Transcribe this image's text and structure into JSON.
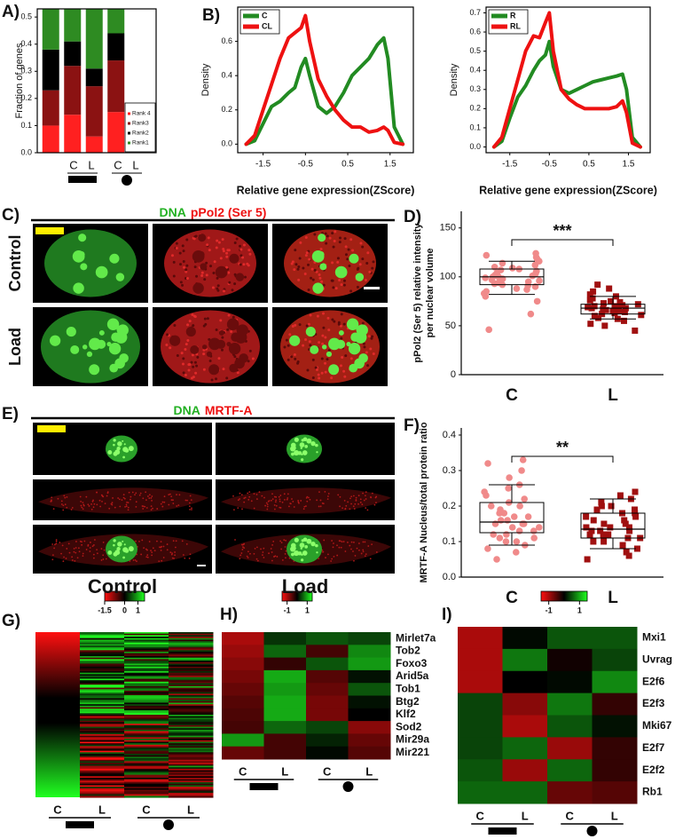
{
  "chart_data": [
    {
      "type": "bar",
      "stacked": true,
      "panel": "A)",
      "ylabel": "Fraction of genes",
      "categories": [
        "C",
        "L",
        "C",
        "L"
      ],
      "series": [
        {
          "name": "Rank 4",
          "color": "#ff2020",
          "values": [
            0.1,
            0.14,
            0.06,
            0.15
          ]
        },
        {
          "name": "Rank3",
          "color": "#8b1212",
          "values": [
            0.13,
            0.18,
            0.185,
            0.19
          ]
        },
        {
          "name": "Rank2",
          "color": "#000000",
          "values": [
            0.15,
            0.09,
            0.065,
            0.1
          ]
        },
        {
          "name": "Rank1",
          "color": "#2e8b22",
          "values": [
            0.15,
            0.12,
            0.22,
            0.09
          ]
        }
      ],
      "ylim": [
        0,
        0.53
      ],
      "yticks": [
        {
          "value": 0,
          "label": "0.0"
        },
        0.1,
        0.2,
        0.3,
        0.4,
        0.5
      ],
      "legend": "lower right"
    },
    {
      "type": "line",
      "panel": "B)",
      "ylabel": "Density",
      "xlabel": "Relative gene expression(ZScore)",
      "x": [
        -1.9,
        -1.7,
        -1.5,
        -1.3,
        -1.1,
        -0.9,
        -0.75,
        -0.6,
        -0.5,
        -0.4,
        -0.2,
        0,
        0.2,
        0.4,
        0.6,
        0.8,
        1.0,
        1.2,
        1.35,
        1.45,
        1.6,
        1.8
      ],
      "series": [
        {
          "name": "C",
          "color": "#228b22",
          "values": [
            0.0,
            0.02,
            0.12,
            0.22,
            0.25,
            0.3,
            0.33,
            0.45,
            0.5,
            0.4,
            0.22,
            0.18,
            0.22,
            0.3,
            0.4,
            0.45,
            0.5,
            0.58,
            0.62,
            0.5,
            0.1,
            0.0
          ]
        },
        {
          "name": "CL",
          "color": "#ee1111",
          "values": [
            0.0,
            0.05,
            0.2,
            0.35,
            0.5,
            0.62,
            0.65,
            0.68,
            0.75,
            0.6,
            0.38,
            0.28,
            0.2,
            0.14,
            0.1,
            0.1,
            0.07,
            0.08,
            0.1,
            0.08,
            0.01,
            0.0
          ]
        }
      ],
      "xlim": [
        -2.1,
        2.05
      ],
      "xticks": [
        -1.5,
        -0.5,
        0.5,
        1.5
      ],
      "ylim": [
        -0.05,
        0.8
      ],
      "yticks": [
        {
          "value": 0,
          "label": "0.0"
        },
        0.2,
        0.4,
        0.6
      ],
      "legend": "upper left"
    },
    {
      "type": "line",
      "ylabel": "Density",
      "xlabel": "Relative gene expression(ZScore)",
      "x": [
        -1.9,
        -1.7,
        -1.5,
        -1.3,
        -1.1,
        -0.9,
        -0.75,
        -0.6,
        -0.5,
        -0.4,
        -0.2,
        0,
        0.2,
        0.4,
        0.6,
        0.8,
        1.0,
        1.2,
        1.35,
        1.45,
        1.6,
        1.8
      ],
      "series": [
        {
          "name": "R",
          "color": "#228b22",
          "values": [
            0.0,
            0.03,
            0.15,
            0.26,
            0.32,
            0.4,
            0.45,
            0.48,
            0.55,
            0.42,
            0.3,
            0.28,
            0.3,
            0.32,
            0.34,
            0.35,
            0.36,
            0.37,
            0.38,
            0.3,
            0.05,
            0.0
          ]
        },
        {
          "name": "RL",
          "color": "#ee1111",
          "values": [
            0.0,
            0.05,
            0.2,
            0.35,
            0.5,
            0.58,
            0.57,
            0.65,
            0.7,
            0.5,
            0.3,
            0.25,
            0.22,
            0.2,
            0.2,
            0.2,
            0.2,
            0.21,
            0.24,
            0.18,
            0.02,
            0.0
          ]
        }
      ],
      "xlim": [
        -2.1,
        2.05
      ],
      "xticks": [
        -1.5,
        -0.5,
        0.5,
        1.5
      ],
      "ylim": [
        -0.03,
        0.73
      ],
      "yticks": [
        {
          "value": 0,
          "label": "0.0"
        },
        0.1,
        0.2,
        0.3,
        0.4,
        0.5,
        0.6,
        0.7
      ],
      "legend": "upper left"
    },
    {
      "type": "box",
      "panel": "D)",
      "ylabel": [
        "pPol2 (Ser 5) relative intensity",
        "per nuclear volume"
      ],
      "categories": [
        "C",
        "L"
      ],
      "colors": [
        "#f08a8a",
        "#a01010"
      ],
      "markers": [
        "circle",
        "square"
      ],
      "points": [
        [
          46,
          62,
          75,
          80,
          83,
          85,
          87,
          88,
          90,
          91,
          92,
          93,
          94,
          95,
          96,
          97,
          98,
          99,
          100,
          100,
          101,
          102,
          103,
          104,
          105,
          106,
          107,
          108,
          109,
          110,
          112,
          114,
          116,
          118,
          120,
          122,
          124
        ],
        [
          45,
          50,
          52,
          55,
          57,
          58,
          60,
          61,
          62,
          63,
          64,
          65,
          65,
          66,
          67,
          67,
          68,
          68,
          69,
          69,
          70,
          70,
          71,
          72,
          73,
          74,
          75,
          76,
          78,
          80,
          82,
          85,
          88,
          92
        ]
      ],
      "boxes": [
        {
          "low": 82,
          "q1": 92,
          "median": 100,
          "q3": 108,
          "high": 116
        },
        {
          "low": 57,
          "q1": 62,
          "median": 68,
          "q3": 72,
          "high": 80
        }
      ],
      "ylim": [
        0,
        167
      ],
      "yticks": [
        0,
        50,
        100,
        150
      ],
      "significance": "***"
    },
    {
      "type": "box",
      "panel": "F)",
      "ylabel": [
        "MRTF-A Nucleus/total protein ratio"
      ],
      "categories": [
        "C",
        "L"
      ],
      "colors": [
        "#f08a8a",
        "#a01010"
      ],
      "markers": [
        "circle",
        "square"
      ],
      "points": [
        [
          0.05,
          0.07,
          0.08,
          0.09,
          0.1,
          0.1,
          0.11,
          0.11,
          0.12,
          0.12,
          0.13,
          0.13,
          0.14,
          0.14,
          0.15,
          0.15,
          0.15,
          0.16,
          0.16,
          0.17,
          0.17,
          0.18,
          0.18,
          0.19,
          0.2,
          0.2,
          0.21,
          0.22,
          0.23,
          0.24,
          0.25,
          0.26,
          0.28,
          0.3,
          0.32,
          0.33
        ],
        [
          0.05,
          0.06,
          0.07,
          0.08,
          0.09,
          0.1,
          0.1,
          0.11,
          0.11,
          0.12,
          0.12,
          0.12,
          0.13,
          0.13,
          0.13,
          0.14,
          0.14,
          0.14,
          0.15,
          0.15,
          0.16,
          0.16,
          0.17,
          0.17,
          0.18,
          0.18,
          0.19,
          0.19,
          0.2,
          0.2,
          0.21,
          0.22,
          0.23,
          0.24
        ]
      ],
      "boxes": [
        {
          "low": 0.09,
          "q1": 0.125,
          "median": 0.155,
          "q3": 0.21,
          "high": 0.26
        },
        {
          "low": 0.08,
          "q1": 0.11,
          "median": 0.135,
          "q3": 0.18,
          "high": 0.22
        }
      ],
      "ylim": [
        0,
        0.42
      ],
      "yticks": [
        {
          "value": 0,
          "label": "0.0"
        },
        0.1,
        0.2,
        0.3,
        0.4
      ],
      "significance": "**"
    },
    {
      "type": "heatmap",
      "panel": "G)",
      "categories": [
        "C",
        "L",
        "C",
        "L"
      ],
      "clim": [
        -1.5,
        1.5
      ],
      "colorbar_ticks": [
        -1.5,
        0,
        1
      ],
      "colors": [
        "#ff1010",
        "#000000",
        "#20ff20"
      ]
    },
    {
      "type": "heatmap",
      "panel": "H)",
      "categories": [
        "C",
        "L",
        "C",
        "L"
      ],
      "rows": [
        "Mirlet7a",
        "Tob2",
        "Foxo3",
        "Arid5a",
        "Tob1",
        "Btg2",
        "Klf2",
        "Sod2",
        "Mir29a",
        "Mir221"
      ],
      "values": [
        [
          -1,
          0.3,
          0.5,
          0.4
        ],
        [
          -0.9,
          0.6,
          -0.4,
          0.8
        ],
        [
          -0.8,
          -0.3,
          0.5,
          0.9
        ],
        [
          -0.7,
          1.0,
          -0.5,
          0.1
        ],
        [
          -0.6,
          0.9,
          -0.6,
          0.5
        ],
        [
          -0.5,
          1.0,
          -0.7,
          0.1
        ],
        [
          -0.45,
          1.0,
          -0.7,
          0.0
        ],
        [
          -0.4,
          0.6,
          0.4,
          -0.8
        ],
        [
          0.9,
          -0.4,
          0.2,
          -0.6
        ],
        [
          -0.6,
          -0.4,
          0.05,
          -0.5
        ]
      ],
      "clim": [
        -1.5,
        1.5
      ],
      "colorbar_ticks": [
        -1,
        1
      ],
      "colors": [
        "#ff1010",
        "#000000",
        "#20ff20"
      ]
    },
    {
      "type": "heatmap",
      "panel": "I)",
      "categories": [
        "C",
        "L",
        "C",
        "L"
      ],
      "rows": [
        "Mxi1",
        "Uvrag",
        "E2f6",
        "E2f3",
        "Mki67",
        "E2f7",
        "E2f2",
        "Rb1"
      ],
      "values": [
        [
          -1,
          0.05,
          0.5,
          0.5
        ],
        [
          -1,
          0.7,
          -0.1,
          0.4
        ],
        [
          -1,
          0.0,
          0.05,
          0.8
        ],
        [
          0.4,
          -0.8,
          0.7,
          -0.3
        ],
        [
          0.4,
          -1,
          0.5,
          0.1
        ],
        [
          0.4,
          0.6,
          -0.9,
          -0.3
        ],
        [
          0.5,
          -0.9,
          0.6,
          -0.3
        ],
        [
          0.6,
          0.6,
          -0.6,
          -0.5
        ]
      ],
      "clim": [
        -1.5,
        1.5
      ],
      "colorbar_ticks": [
        -1,
        1
      ],
      "colors": [
        "#ff1010",
        "#000000",
        "#20ff20"
      ]
    }
  ],
  "images": [
    {
      "panel": "C)",
      "stains": [
        {
          "name": "DNA",
          "color": "#22b022"
        },
        {
          "name": "pPol2 (Ser 5)",
          "color": "#ee1111"
        }
      ],
      "row_labels": [
        "Control",
        "Load"
      ]
    },
    {
      "panel": "E)",
      "stains": [
        {
          "name": "DNA",
          "color": "#22b022"
        },
        {
          "name": "MRTF-A",
          "color": "#ee1111"
        }
      ],
      "column_labels": [
        "Control",
        "Load"
      ]
    }
  ]
}
